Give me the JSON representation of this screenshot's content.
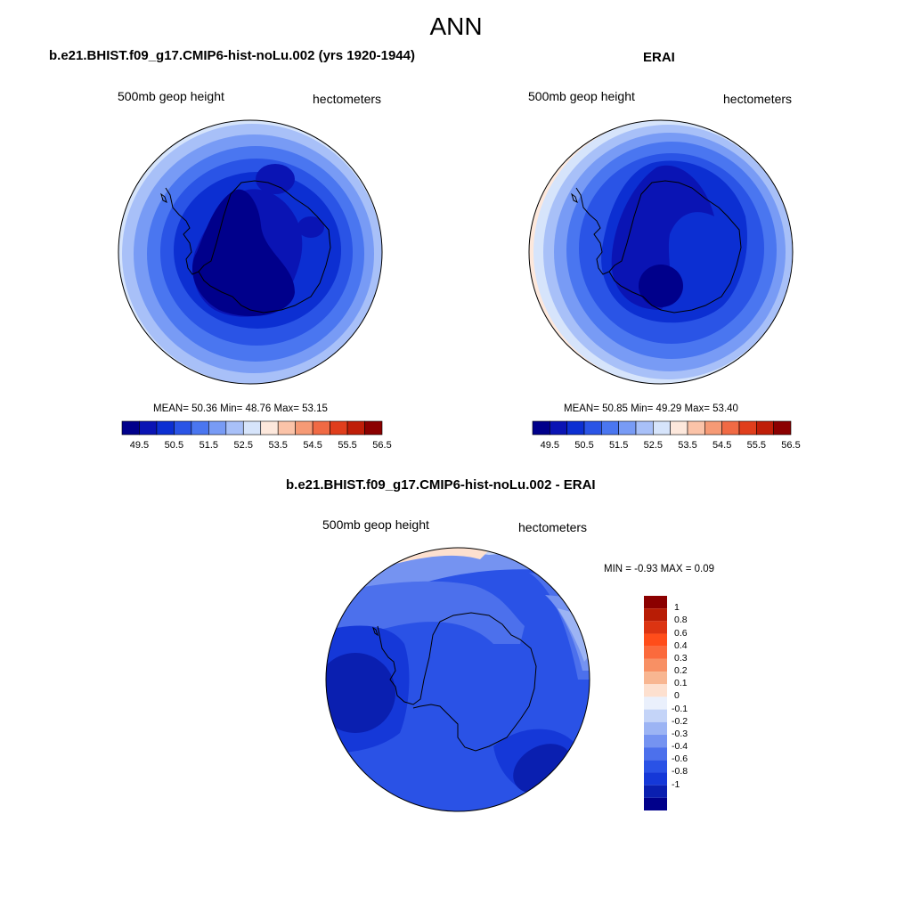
{
  "figure": {
    "title": "ANN"
  },
  "panels": [
    {
      "title": "b.e21.BHIST.f09_g17.CMIP6-hist-noLu.002 (yrs 1920-1944)",
      "left_label": "500mb geop height",
      "right_label": "hectometers",
      "stats": "MEAN=  50.36  Min=  48.76  Max=  53.15"
    },
    {
      "title": "ERAI",
      "left_label": "500mb geop height",
      "right_label": "hectometers",
      "stats": "MEAN=  50.85  Min=  49.29  Max=  53.40"
    },
    {
      "title": "b.e21.BHIST.f09_g17.CMIP6-hist-noLu.002 - ERAI",
      "left_label": "500mb geop height",
      "right_label": "hectometers",
      "stats": "MIN =  -0.93 MAX =   0.09"
    }
  ],
  "colorbar_top": {
    "colors": [
      "#00008b",
      "#0a14b4",
      "#0c2fd2",
      "#2a54e6",
      "#4a76f0",
      "#789bf5",
      "#a8c0f8",
      "#d6e4fb",
      "#fde8dc",
      "#fbc3a8",
      "#f69a75",
      "#f06a44",
      "#e03e1c",
      "#bf1e08",
      "#8b0000"
    ],
    "tick_labels": [
      "49.5",
      "50.5",
      "51.5",
      "52.5",
      "53.5",
      "54.5",
      "55.5",
      "56.5"
    ]
  },
  "colorbar_diff": {
    "colors": [
      "#8b0000",
      "#b81c05",
      "#dc3412",
      "#ff4d1a",
      "#fb6a3c",
      "#f89064",
      "#f8b691",
      "#fde0cf",
      "#eaf0fc",
      "#c4d4f8",
      "#9cb4f4",
      "#7593f1",
      "#4c70ec",
      "#2a52e6",
      "#1538d8",
      "#0a1fb0",
      "#00008b"
    ],
    "tick_labels": [
      "1",
      "0.8",
      "0.6",
      "0.4",
      "0.3",
      "0.2",
      "0.1",
      "0",
      "-0.1",
      "-0.2",
      "-0.3",
      "-0.4",
      "-0.6",
      "-0.8",
      "-1"
    ]
  },
  "chart_data": {
    "type": "heatmap",
    "variable": "500mb geop height",
    "units": "hectometers",
    "season": "ANN",
    "panels": [
      {
        "name": "b.e21.BHIST.f09_g17.CMIP6-hist-noLu.002 (yrs 1920-1944)",
        "mean": 50.36,
        "min": 48.76,
        "max": 53.15
      },
      {
        "name": "ERAI",
        "mean": 50.85,
        "min": 49.29,
        "max": 53.4
      },
      {
        "name": "b.e21.BHIST.f09_g17.CMIP6-hist-noLu.002 - ERAI",
        "min": -0.93,
        "max": 0.09
      }
    ]
  }
}
